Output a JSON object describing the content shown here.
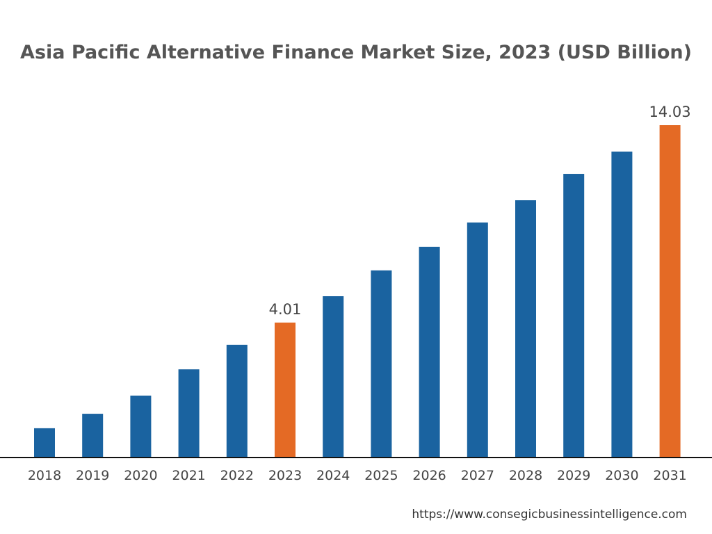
{
  "chart_data": {
    "type": "bar",
    "title": "Asia Pacific Alternative Finance Market Size, 2023 (USD Billion)",
    "xlabel": "",
    "ylabel": "",
    "categories": [
      "2018",
      "2019",
      "2020",
      "2021",
      "2022",
      "2023",
      "2024",
      "2025",
      "2026",
      "2027",
      "2028",
      "2029",
      "2030",
      "2031"
    ],
    "values": [
      0.87,
      1.3,
      1.84,
      2.62,
      3.35,
      4.01,
      5.35,
      6.66,
      7.86,
      9.09,
      10.22,
      11.56,
      12.69,
      14.03
    ],
    "data_labels": {
      "2023": "4.01",
      "2031": "14.03"
    },
    "highlight": [
      "2023",
      "2031"
    ],
    "colors": {
      "default": "#1a63a0",
      "highlight": "#e46a25"
    },
    "grid": false,
    "y_axis_shown": false
  },
  "source": "https://www.consegicbusinessintelligence.com"
}
